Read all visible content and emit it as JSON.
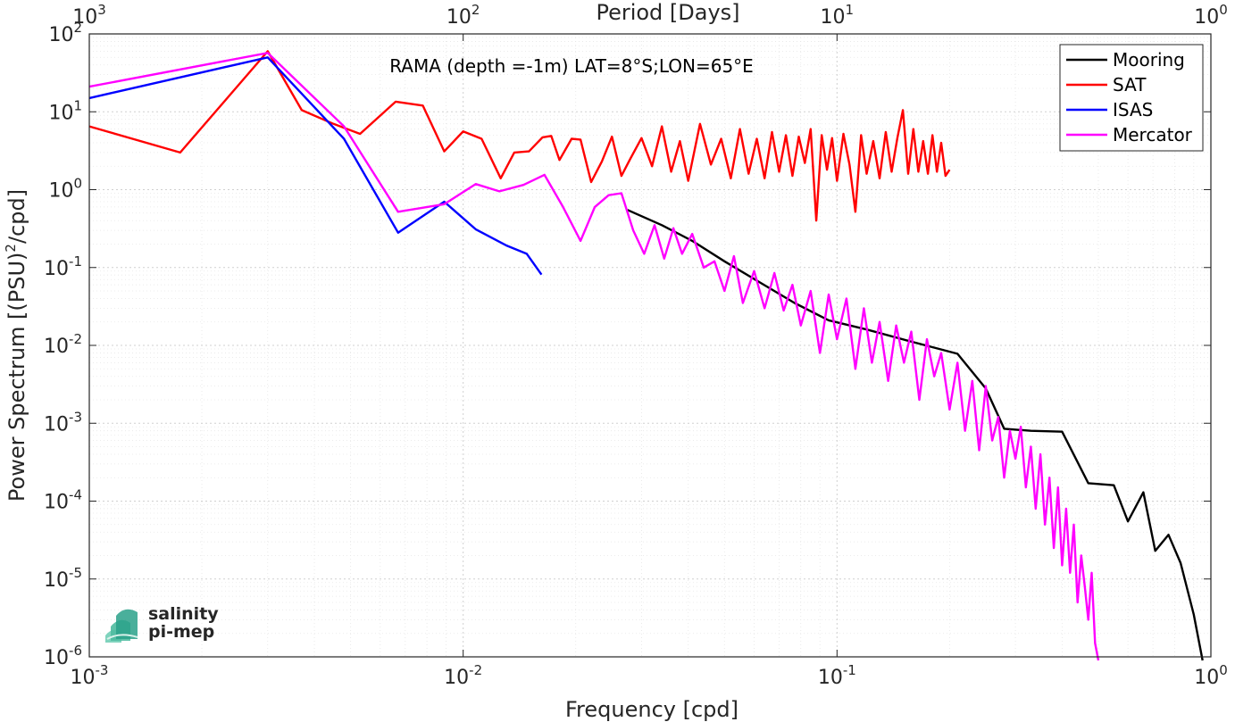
{
  "chart_data": {
    "type": "line",
    "title": "RAMA (depth =-1m) LAT=8°S;LON=65°E",
    "xlabel": "Frequency [cpd]",
    "ylabel_main": "Power Spectrum [(PSU)",
    "ylabel_sup": "2",
    "ylabel_tail": "/cpd]",
    "top_xlabel": "Period [Days]",
    "x_scale": "log",
    "y_scale": "log",
    "xlim": [
      0.001,
      1
    ],
    "ylim": [
      1e-06,
      100
    ],
    "grid": true,
    "legend_position": "top-right",
    "x_ticks": [
      {
        "value": 0.001,
        "base": "10",
        "exp": "-3"
      },
      {
        "value": 0.01,
        "base": "10",
        "exp": "-2"
      },
      {
        "value": 0.1,
        "base": "10",
        "exp": "-1"
      },
      {
        "value": 1,
        "base": "10",
        "exp": "0"
      }
    ],
    "top_ticks": [
      {
        "value": 0.001,
        "base": "10",
        "exp": "3"
      },
      {
        "value": 0.01,
        "base": "10",
        "exp": "2"
      },
      {
        "value": 0.1,
        "base": "10",
        "exp": "1"
      },
      {
        "value": 1,
        "base": "10",
        "exp": "0"
      }
    ],
    "y_ticks": [
      {
        "value": 100,
        "base": "10",
        "exp": "2"
      },
      {
        "value": 10,
        "base": "10",
        "exp": "1"
      },
      {
        "value": 1,
        "base": "10",
        "exp": "0"
      },
      {
        "value": 0.1,
        "base": "10",
        "exp": "-1"
      },
      {
        "value": 0.01,
        "base": "10",
        "exp": "-2"
      },
      {
        "value": 0.001,
        "base": "10",
        "exp": "-3"
      },
      {
        "value": 0.0001,
        "base": "10",
        "exp": "-4"
      },
      {
        "value": 1e-05,
        "base": "10",
        "exp": "-5"
      },
      {
        "value": 1e-06,
        "base": "10",
        "exp": "-6"
      }
    ],
    "series": [
      {
        "name": "Mooring",
        "color": "#000000",
        "x": [
          0.0275,
          0.034,
          0.041,
          0.05,
          0.062,
          0.077,
          0.095,
          0.12,
          0.16,
          0.21,
          0.25,
          0.28,
          0.33,
          0.4,
          0.47,
          0.55,
          0.6,
          0.66,
          0.71,
          0.77,
          0.83,
          0.9,
          0.95
        ],
        "y": [
          0.55,
          0.35,
          0.22,
          0.12,
          0.065,
          0.035,
          0.021,
          0.016,
          0.011,
          0.0078,
          0.0028,
          0.00085,
          0.0008,
          0.00078,
          0.00017,
          0.00016,
          5.5e-05,
          0.00013,
          2.3e-05,
          3.7e-05,
          1.6e-05,
          3.5e-06,
          9e-07
        ]
      },
      {
        "name": "SAT",
        "color": "#ff0000",
        "x": [
          0.001,
          0.00175,
          0.003,
          0.0037,
          0.0045,
          0.0053,
          0.0066,
          0.0078,
          0.0089,
          0.01,
          0.0112,
          0.0126,
          0.0137,
          0.015,
          0.0163,
          0.0172,
          0.0181,
          0.0195,
          0.0206,
          0.022,
          0.0235,
          0.025,
          0.0265,
          0.028,
          0.03,
          0.032,
          0.034,
          0.036,
          0.038,
          0.04,
          0.043,
          0.046,
          0.049,
          0.052,
          0.055,
          0.058,
          0.061,
          0.064,
          0.067,
          0.07,
          0.073,
          0.076,
          0.079,
          0.082,
          0.085,
          0.088,
          0.091,
          0.094,
          0.097,
          0.1,
          0.104,
          0.108,
          0.112,
          0.116,
          0.12,
          0.125,
          0.13,
          0.135,
          0.14,
          0.145,
          0.15,
          0.155,
          0.16,
          0.165,
          0.17,
          0.175,
          0.18,
          0.185,
          0.19,
          0.195,
          0.2
        ],
        "y": [
          6.5,
          3.0,
          60,
          10.5,
          7.0,
          5.2,
          13.5,
          12.0,
          3.1,
          5.6,
          4.5,
          1.4,
          3.0,
          3.1,
          4.7,
          4.9,
          2.4,
          4.5,
          4.4,
          1.25,
          2.3,
          4.8,
          1.5,
          2.5,
          4.6,
          2.0,
          6.5,
          1.7,
          4.2,
          1.3,
          7.0,
          2.1,
          4.5,
          1.4,
          6.0,
          1.6,
          4.5,
          1.4,
          5.5,
          1.7,
          5.0,
          1.5,
          4.8,
          2.2,
          6.0,
          0.4,
          5.0,
          1.8,
          4.6,
          1.3,
          5.2,
          2.1,
          0.52,
          5.0,
          1.6,
          4.2,
          1.4,
          5.5,
          1.7,
          4.6,
          10.5,
          1.6,
          6.0,
          1.7,
          4.2,
          1.6,
          5.0,
          1.7,
          4.0,
          1.5,
          1.8
        ]
      },
      {
        "name": "ISAS",
        "color": "#0000ff",
        "x": [
          0.001,
          0.003,
          0.0048,
          0.0067,
          0.0089,
          0.0108,
          0.0131,
          0.0148,
          0.0162
        ],
        "y": [
          15,
          50,
          4.5,
          0.28,
          0.7,
          0.31,
          0.19,
          0.15,
          0.081
        ]
      },
      {
        "name": "Mercator",
        "color": "#ff00ff",
        "x": [
          0.001,
          0.003,
          0.0048,
          0.0067,
          0.0089,
          0.0108,
          0.0125,
          0.0145,
          0.0165,
          0.0185,
          0.0206,
          0.0225,
          0.0245,
          0.0265,
          0.0285,
          0.0305,
          0.0325,
          0.0345,
          0.0365,
          0.0385,
          0.041,
          0.044,
          0.047,
          0.05,
          0.053,
          0.056,
          0.06,
          0.064,
          0.068,
          0.072,
          0.076,
          0.08,
          0.085,
          0.09,
          0.095,
          0.1,
          0.106,
          0.112,
          0.118,
          0.124,
          0.13,
          0.137,
          0.144,
          0.151,
          0.158,
          0.166,
          0.174,
          0.182,
          0.19,
          0.2,
          0.21,
          0.22,
          0.23,
          0.24,
          0.25,
          0.26,
          0.27,
          0.28,
          0.29,
          0.3,
          0.31,
          0.32,
          0.33,
          0.34,
          0.35,
          0.36,
          0.37,
          0.38,
          0.39,
          0.4,
          0.41,
          0.42,
          0.43,
          0.44,
          0.45,
          0.46,
          0.47,
          0.48,
          0.49,
          0.5
        ],
        "y": [
          21,
          57,
          6.5,
          0.52,
          0.65,
          1.18,
          0.95,
          1.15,
          1.55,
          0.6,
          0.22,
          0.6,
          0.85,
          0.9,
          0.3,
          0.15,
          0.35,
          0.13,
          0.32,
          0.15,
          0.27,
          0.1,
          0.12,
          0.05,
          0.14,
          0.035,
          0.09,
          0.03,
          0.085,
          0.028,
          0.06,
          0.018,
          0.05,
          0.008,
          0.045,
          0.012,
          0.04,
          0.005,
          0.03,
          0.006,
          0.02,
          0.0035,
          0.018,
          0.006,
          0.015,
          0.002,
          0.012,
          0.004,
          0.008,
          0.0015,
          0.006,
          0.0008,
          0.0035,
          0.00045,
          0.003,
          0.0006,
          0.0012,
          0.0002,
          0.0008,
          0.00035,
          0.0009,
          0.00015,
          0.0005,
          8e-05,
          0.0004,
          5e-05,
          0.0002,
          2.5e-05,
          0.00015,
          1.5e-05,
          8e-05,
          1.2e-05,
          5e-05,
          5e-06,
          2e-05,
          8e-06,
          3e-06,
          1.2e-05,
          1.5e-06,
          9e-07
        ]
      }
    ]
  },
  "logo": {
    "line1": "salinity",
    "line2": "pi-mep",
    "color": "#2aa189"
  }
}
